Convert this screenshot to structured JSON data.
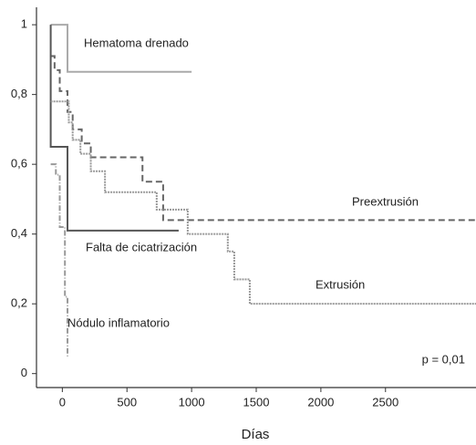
{
  "chart_data": {
    "type": "line",
    "step": "post",
    "xlabel": "Días",
    "xlim": [
      -200,
      3200
    ],
    "ylim": [
      -0.04,
      1.05
    ],
    "xticks": [
      0,
      500,
      1000,
      1500,
      2000,
      2500
    ],
    "yticks": [
      0,
      {
        "value": 0.2,
        "label": "0,2"
      },
      {
        "value": 0.4,
        "label": "0,4"
      },
      {
        "value": 0.6,
        "label": "0,6"
      },
      {
        "value": 0.8,
        "label": "0,8"
      },
      1
    ],
    "annotation": "p = 0,01",
    "series": [
      {
        "name": "Hematoma drenado",
        "color": "#aaaaaa",
        "dash": "none",
        "x": [
          -90,
          40,
          1000
        ],
        "values": [
          1,
          0.865,
          0.865
        ]
      },
      {
        "name": "Preextrusión",
        "color": "#666666",
        "dash": "7,4",
        "x": [
          -90,
          -60,
          -20,
          40,
          80,
          150,
          220,
          620,
          780,
          3200
        ],
        "values": [
          0.91,
          0.87,
          0.81,
          0.75,
          0.7,
          0.66,
          0.62,
          0.55,
          0.44,
          0.44
        ]
      },
      {
        "name": "Falta de cicatrización",
        "color": "#555555",
        "dash": "none",
        "x": [
          -90,
          -90,
          40,
          900
        ],
        "values": [
          1,
          0.65,
          0.41,
          0.41
        ]
      },
      {
        "name": "Extrusión",
        "color": "#999999",
        "dash": "2,1",
        "x": [
          -90,
          50,
          80,
          140,
          220,
          330,
          730,
          970,
          1280,
          1330,
          1450,
          3200
        ],
        "values": [
          0.78,
          0.72,
          0.67,
          0.63,
          0.58,
          0.52,
          0.47,
          0.4,
          0.35,
          0.27,
          0.2,
          0.2
        ]
      },
      {
        "name": "Nódulo inflamatorio",
        "color": "#999999",
        "dash": "6,2,1,2",
        "x": [
          -90,
          -50,
          -20,
          20,
          40
        ],
        "values": [
          0.6,
          0.57,
          0.42,
          0.22,
          0.05
        ]
      }
    ]
  }
}
